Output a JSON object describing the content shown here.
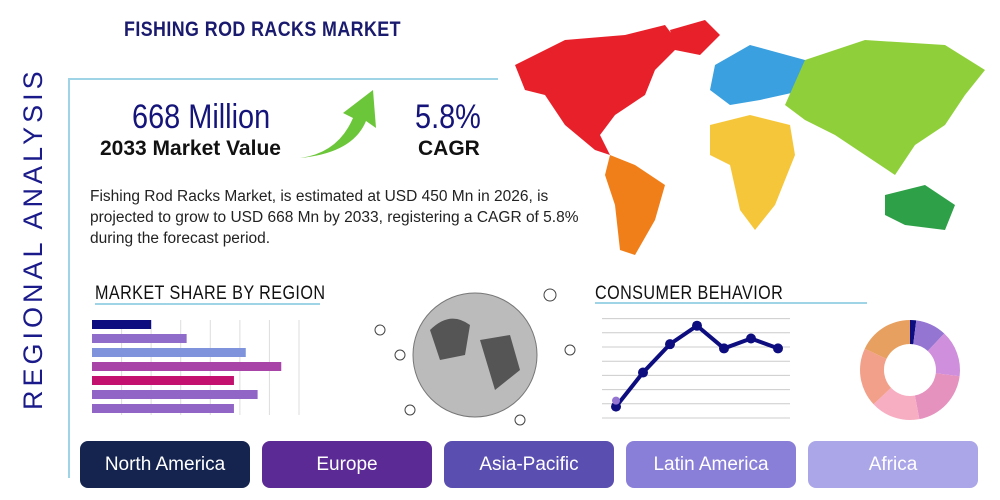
{
  "title": "FISHING ROD RACKS MARKET",
  "side_label": "REGIONAL ANALYSIS",
  "market_value": {
    "value": "668 Million",
    "label": "2033 Market Value"
  },
  "cagr": {
    "value": "5.8%",
    "label": "CAGR"
  },
  "description": "Fishing Rod Racks Market, is estimated at USD 450 Mn in 2026, is projected to grow to USD 668 Mn by 2033, registering a CAGR of 5.8% during the forecast period.",
  "sections": {
    "market_share": "MARKET SHARE BY REGION",
    "consumer": "CONSUMER BEHAVIOR"
  },
  "regions": [
    {
      "label": "North America",
      "color": "#14244f"
    },
    {
      "label": "Europe",
      "color": "#5b2a94"
    },
    {
      "label": "Asia-Pacific",
      "color": "#5a4fb0"
    },
    {
      "label": "Latin America",
      "color": "#8a7fd8"
    },
    {
      "label": "Africa",
      "color": "#aba6e8"
    }
  ],
  "chart_data": [
    {
      "type": "bar",
      "orientation": "horizontal",
      "values": [
        2,
        3.2,
        5.2,
        6.4,
        4.8,
        5.6,
        4.8
      ],
      "colors": [
        "#0d0d80",
        "#8f6cc9",
        "#7f93dd",
        "#a843a8",
        "#c2116e",
        "#9065c5",
        "#9065c5"
      ],
      "xlim": [
        0,
        7
      ],
      "grid": true
    },
    {
      "type": "line",
      "values": [
        0.8,
        3.2,
        5.2,
        6.5,
        4.9,
        5.6,
        4.9
      ],
      "ylim": [
        0,
        7
      ],
      "color": "#0d0d80",
      "grid": true
    },
    {
      "type": "pie",
      "donut": true,
      "values": [
        2,
        10,
        15,
        20,
        16,
        19,
        18
      ],
      "colors": [
        "#0d0d80",
        "#9575d2",
        "#cf8fdc",
        "#e592bf",
        "#f7aec2",
        "#f2a08a",
        "#e8a060"
      ]
    }
  ]
}
